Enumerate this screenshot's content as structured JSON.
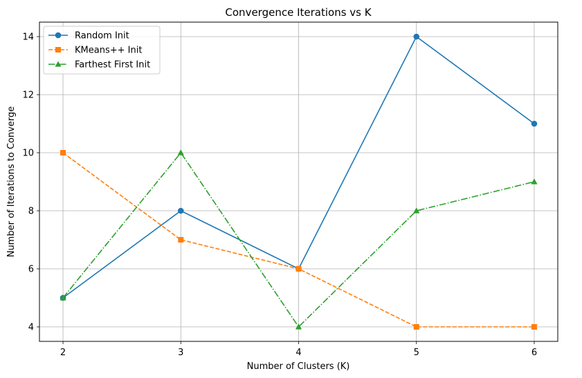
{
  "chart_data": {
    "type": "line",
    "title": "Convergence Iterations vs K",
    "xlabel": "Number of Clusters (K)",
    "ylabel": "Number of Iterations to Converge",
    "x": [
      2,
      3,
      4,
      5,
      6
    ],
    "xlim": [
      1.8,
      6.2
    ],
    "ylim": [
      3.5,
      14.5
    ],
    "xticks": [
      2,
      3,
      4,
      5,
      6
    ],
    "yticks": [
      4,
      6,
      8,
      10,
      12,
      14
    ],
    "grid": true,
    "legend_position": "upper-left",
    "series": [
      {
        "name": "Random Init",
        "values": [
          5,
          8,
          6,
          14,
          11
        ],
        "color": "#1f77b4",
        "marker": "circle",
        "linestyle": "solid"
      },
      {
        "name": "KMeans++ Init",
        "values": [
          10,
          7,
          6,
          4,
          4
        ],
        "color": "#ff7f0e",
        "marker": "square",
        "linestyle": "dashed"
      },
      {
        "name": "Farthest First Init",
        "values": [
          5,
          10,
          4,
          8,
          9
        ],
        "color": "#2ca02c",
        "marker": "triangle",
        "linestyle": "dashdot"
      }
    ]
  }
}
